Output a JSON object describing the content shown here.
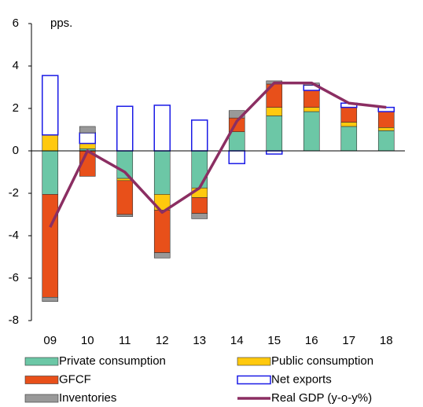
{
  "chart_data": {
    "type": "bar",
    "stacked": true,
    "unit_label": "pps.",
    "categories": [
      "09",
      "10",
      "11",
      "12",
      "13",
      "14",
      "15",
      "16",
      "17",
      "18"
    ],
    "ylim": [
      -8,
      6
    ],
    "yticks": [
      -8,
      -6,
      -4,
      -2,
      0,
      2,
      4,
      6
    ],
    "grid": false,
    "series": [
      {
        "name": "Private consumption",
        "type": "bar",
        "color": "#6cc7a6",
        "values": [
          -2.05,
          0.1,
          -1.3,
          -2.05,
          -1.75,
          0.9,
          1.65,
          1.85,
          1.15,
          0.95
        ]
      },
      {
        "name": "Public consumption",
        "type": "bar",
        "color": "#ffc90e",
        "values": [
          0.75,
          0.25,
          -0.1,
          -0.75,
          -0.45,
          0,
          0.4,
          0.2,
          0.2,
          0.15
        ]
      },
      {
        "name": "GFCF",
        "type": "bar",
        "color": "#e8501a",
        "values": [
          -4.85,
          -1.2,
          -1.6,
          -2.0,
          -0.75,
          0.65,
          1.1,
          0.8,
          0.7,
          0.75
        ]
      },
      {
        "name": "Net exports",
        "type": "bar",
        "color": "#1a1ae6",
        "values": [
          2.8,
          0.5,
          2.1,
          2.15,
          1.45,
          -0.6,
          -0.15,
          0.25,
          0.2,
          0.2
        ]
      },
      {
        "name": "Inventories",
        "type": "bar",
        "color": "#999999",
        "values": [
          -0.2,
          0.3,
          -0.1,
          -0.25,
          -0.25,
          0.35,
          0.15,
          0.1,
          0,
          0
        ]
      },
      {
        "name": "Real GDP (y-o-y%)",
        "type": "line",
        "color": "#8b2e62",
        "values": [
          -3.6,
          0.0,
          -1.0,
          -2.9,
          -1.75,
          1.4,
          3.2,
          3.2,
          2.25,
          2.05
        ]
      }
    ]
  }
}
